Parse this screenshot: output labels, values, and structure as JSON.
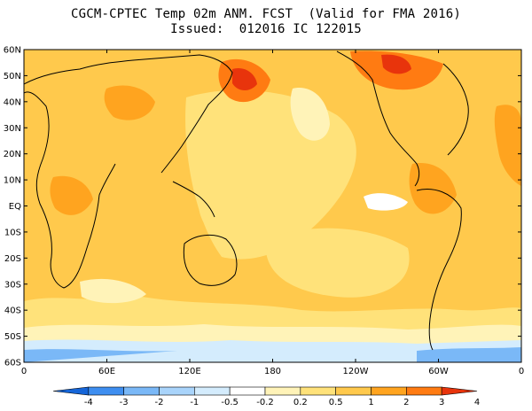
{
  "title": {
    "line1": "CGCM-CPTEC Temp 02m ANM. FCST  (Valid for FMA 2016)",
    "line2": "Issued:  012016 IC 122015"
  },
  "lat_labels": [
    "60N",
    "50N",
    "40N",
    "30N",
    "20N",
    "10N",
    "EQ",
    "10S",
    "20S",
    "30S",
    "40S",
    "50S",
    "60S"
  ],
  "lon_labels": [
    "0",
    "60E",
    "120E",
    "180",
    "120W",
    "60W",
    "0"
  ],
  "colorbar": {
    "levels": [
      "-4",
      "-3",
      "-2",
      "-1",
      "-0.5",
      "-0.2",
      "0.2",
      "0.5",
      "1",
      "2",
      "3",
      "4"
    ],
    "colors": [
      "#1565d8",
      "#3e8ef0",
      "#7ab8f7",
      "#a9d4fb",
      "#d4ecfd",
      "#ffffff",
      "#fff3b8",
      "#ffe27a",
      "#ffc94c",
      "#ffa41f",
      "#ff7b12",
      "#e8340c"
    ]
  }
}
